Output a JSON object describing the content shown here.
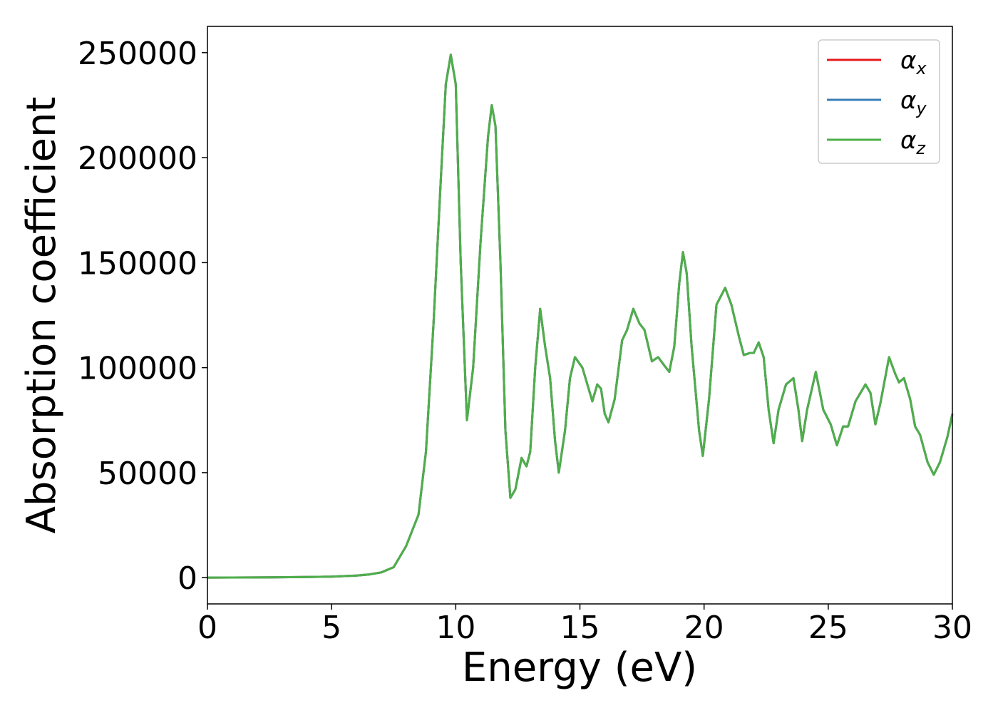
{
  "chart_data": {
    "type": "line",
    "xlabel": "Energy (eV)",
    "ylabel": "Absorption coefficient",
    "x": [
      0,
      2,
      4,
      5,
      6,
      6.5,
      7,
      7.5,
      8,
      8.5,
      8.8,
      9.1,
      9.4,
      9.6,
      9.8,
      10.0,
      10.2,
      10.45,
      10.7,
      11.0,
      11.3,
      11.45,
      11.6,
      11.8,
      12.0,
      12.2,
      12.4,
      12.65,
      12.85,
      13.0,
      13.2,
      13.4,
      13.6,
      13.8,
      14.0,
      14.15,
      14.4,
      14.6,
      14.8,
      15.1,
      15.4,
      15.5,
      15.7,
      15.85,
      16.0,
      16.15,
      16.4,
      16.7,
      16.9,
      17.15,
      17.4,
      17.6,
      17.9,
      18.15,
      18.4,
      18.6,
      18.8,
      19.0,
      19.15,
      19.3,
      19.5,
      19.8,
      19.95,
      20.2,
      20.5,
      20.85,
      21.1,
      21.4,
      21.6,
      21.85,
      22.0,
      22.2,
      22.4,
      22.6,
      22.8,
      23.0,
      23.3,
      23.6,
      23.8,
      23.95,
      24.15,
      24.5,
      24.8,
      25.1,
      25.35,
      25.6,
      25.8,
      26.1,
      26.5,
      26.7,
      26.9,
      27.1,
      27.45,
      27.7,
      27.85,
      28.05,
      28.3,
      28.5,
      28.7,
      29.0,
      29.25,
      29.5,
      29.8,
      30
    ],
    "series": [
      {
        "name": "αx",
        "color": "#e41a1c",
        "values": [
          0,
          100,
          300,
          500,
          1000,
          1500,
          2500,
          5000,
          15000,
          30000,
          60000,
          120000,
          190000,
          235000,
          249000,
          235000,
          150000,
          75000,
          100000,
          160000,
          210000,
          225000,
          215000,
          150000,
          70000,
          38000,
          42000,
          57000,
          53000,
          60000,
          100000,
          128000,
          110000,
          95000,
          65000,
          50000,
          70000,
          95000,
          105000,
          100000,
          88000,
          84000,
          92000,
          90000,
          78000,
          74000,
          85000,
          113000,
          118000,
          128000,
          121000,
          118000,
          103000,
          105000,
          101000,
          98000,
          110000,
          140000,
          155000,
          145000,
          110000,
          70000,
          58000,
          85000,
          130000,
          138000,
          130000,
          115000,
          106000,
          107000,
          107000,
          112000,
          105000,
          80000,
          64000,
          80000,
          92000,
          95000,
          80000,
          65000,
          80000,
          98000,
          80000,
          73000,
          63000,
          72000,
          72000,
          84000,
          92000,
          88000,
          73000,
          83000,
          105000,
          97000,
          93000,
          95000,
          85000,
          72000,
          68000,
          55000,
          49000,
          55000,
          67000,
          78000
        ]
      },
      {
        "name": "αy",
        "color": "#377eb8",
        "values": [
          0,
          100,
          300,
          500,
          1000,
          1500,
          2500,
          5000,
          15000,
          30000,
          60000,
          120000,
          190000,
          235000,
          249000,
          235000,
          150000,
          75000,
          100000,
          160000,
          210000,
          225000,
          215000,
          150000,
          70000,
          38000,
          42000,
          57000,
          53000,
          60000,
          100000,
          128000,
          110000,
          95000,
          65000,
          50000,
          70000,
          95000,
          105000,
          100000,
          88000,
          84000,
          92000,
          90000,
          78000,
          74000,
          85000,
          113000,
          118000,
          128000,
          121000,
          118000,
          103000,
          105000,
          101000,
          98000,
          110000,
          140000,
          155000,
          145000,
          110000,
          70000,
          58000,
          85000,
          130000,
          138000,
          130000,
          115000,
          106000,
          107000,
          107000,
          112000,
          105000,
          80000,
          64000,
          80000,
          92000,
          95000,
          80000,
          65000,
          80000,
          98000,
          80000,
          73000,
          63000,
          72000,
          72000,
          84000,
          92000,
          88000,
          73000,
          83000,
          105000,
          97000,
          93000,
          95000,
          85000,
          72000,
          68000,
          55000,
          49000,
          55000,
          67000,
          78000
        ]
      },
      {
        "name": "αz",
        "color": "#4daf4a",
        "values": [
          0,
          100,
          300,
          500,
          1000,
          1500,
          2500,
          5000,
          15000,
          30000,
          60000,
          120000,
          190000,
          235000,
          249000,
          235000,
          150000,
          75000,
          100000,
          160000,
          210000,
          225000,
          215000,
          150000,
          70000,
          38000,
          42000,
          57000,
          53000,
          60000,
          100000,
          128000,
          110000,
          95000,
          65000,
          50000,
          70000,
          95000,
          105000,
          100000,
          88000,
          84000,
          92000,
          90000,
          78000,
          74000,
          85000,
          113000,
          118000,
          128000,
          121000,
          118000,
          103000,
          105000,
          101000,
          98000,
          110000,
          140000,
          155000,
          145000,
          110000,
          70000,
          58000,
          85000,
          130000,
          138000,
          130000,
          115000,
          106000,
          107000,
          107000,
          112000,
          105000,
          80000,
          64000,
          80000,
          92000,
          95000,
          80000,
          65000,
          80000,
          98000,
          80000,
          73000,
          63000,
          72000,
          72000,
          84000,
          92000,
          88000,
          73000,
          83000,
          105000,
          97000,
          93000,
          95000,
          85000,
          72000,
          68000,
          55000,
          49000,
          55000,
          67000,
          78000
        ]
      }
    ],
    "xlim": [
      0,
      30
    ],
    "xticks": [
      0,
      5,
      10,
      15,
      20,
      25,
      30
    ],
    "ylim": [
      -12500,
      262500
    ],
    "yticks": [
      0,
      50000,
      100000,
      150000,
      200000,
      250000
    ],
    "legend": "upper right"
  }
}
